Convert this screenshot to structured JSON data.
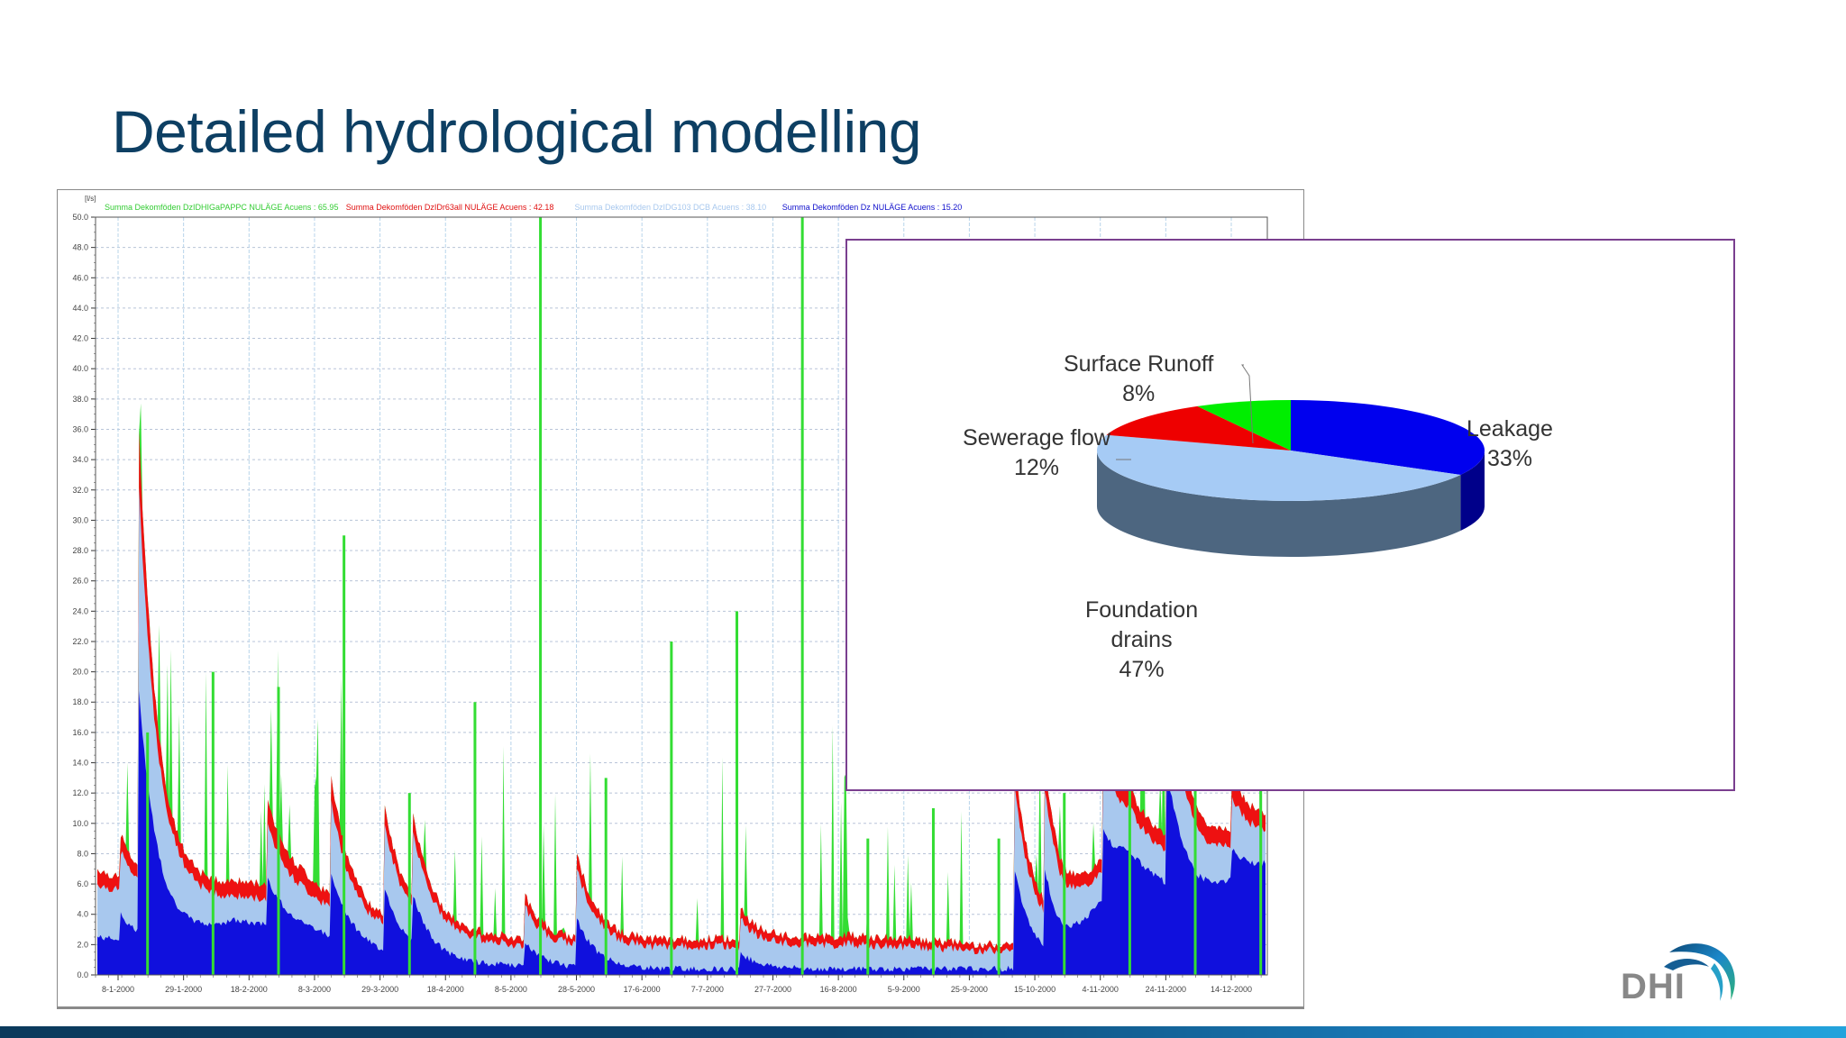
{
  "slide": {
    "title": "Detailed hydrological modelling",
    "logo_text": "DHI",
    "colors": {
      "title": "#0d3f63",
      "bottom_bar_start": "#0b3a5c",
      "bottom_bar_end": "#23a3dc",
      "pie_border": "#7a3f8f"
    }
  },
  "timeseries": {
    "unit_label": "[l/s]",
    "legend": [
      {
        "text": "Summa Dekomföden DzIDHIGaPAPPC NULÄGE   Acuens : 65.95",
        "color": "#33cc33"
      },
      {
        "text": "Summa Dekomföden DzIDr63all NULÄGE   Acuens : 42.18",
        "color": "#e01010"
      },
      {
        "text": "Summa Dekomföden DzIDG103 DCB   Acuens : 38.10",
        "color": "#a8c8ee"
      },
      {
        "text": "Summa Dekomföden Dz NULÄGE   Acuens : 15.20",
        "color": "#1010cc"
      }
    ],
    "y_ticks": [
      "0.0",
      "2.0",
      "4.0",
      "6.0",
      "8.0",
      "10.0",
      "12.0",
      "14.0",
      "16.0",
      "18.0",
      "20.0",
      "22.0",
      "24.0",
      "26.0",
      "28.0",
      "30.0",
      "32.0",
      "34.0",
      "36.0",
      "38.0",
      "40.0",
      "42.0",
      "44.0",
      "46.0",
      "48.0",
      "50.0"
    ],
    "x_ticks": [
      "8-1-2000",
      "29-1-2000",
      "18-2-2000",
      "8-3-2000",
      "29-3-2000",
      "18-4-2000",
      "8-5-2000",
      "28-5-2000",
      "17-6-2000",
      "7-7-2000",
      "27-7-2000",
      "16-8-2000",
      "5-9-2000",
      "25-9-2000",
      "15-10-2000",
      "4-11-2000",
      "24-11-2000",
      "14-12-2000"
    ]
  },
  "pie": {
    "labels": {
      "surface_name": "Surface Runoff",
      "surface_pct": "8%",
      "sewerage_name": "Sewerage flow",
      "sewerage_pct": "12%",
      "leakage_name": "Leakage",
      "leakage_pct": "33%",
      "foundation_name_1": "Foundation",
      "foundation_name_2": "drains",
      "foundation_pct": "47%"
    }
  },
  "chart_data": [
    {
      "type": "area",
      "title": "",
      "xlabel": "",
      "ylabel": "[l/s]",
      "ylim": [
        0,
        50
      ],
      "grid": true,
      "legend_position": "top",
      "x": [
        "8-1-2000",
        "29-1-2000",
        "18-2-2000",
        "8-3-2000",
        "29-3-2000",
        "18-4-2000",
        "8-5-2000",
        "28-5-2000",
        "17-6-2000",
        "7-7-2000",
        "27-7-2000",
        "16-8-2000",
        "5-9-2000",
        "25-9-2000",
        "15-10-2000",
        "4-11-2000",
        "24-11-2000",
        "14-12-2000"
      ],
      "series": [
        {
          "name": "Summa Dekomföden DzIDHIGaPAPPC NULÄGE (Acuens 65.95)",
          "color": "#33cc33",
          "values": [
            16,
            20,
            19,
            29,
            12,
            18,
            50,
            13,
            22,
            24,
            50,
            9,
            11,
            9,
            12,
            15,
            15,
            15
          ]
        },
        {
          "name": "Summa Dekomföden DzIDr63all NULÄGE (Acuens 42.18)",
          "color": "#e01010",
          "values": [
            7,
            5,
            6,
            6,
            3.5,
            2.8,
            2.5,
            2.2,
            2.3,
            2.4,
            2.4,
            2.6,
            2.3,
            2.0,
            2.3,
            10,
            8,
            10
          ]
        },
        {
          "name": "Summa Dekomföden DzIDG103 DCB (Acuens 38.10)",
          "color": "#a8c8ee",
          "values": [
            6,
            4.5,
            5,
            5,
            3,
            2.4,
            2.0,
            1.8,
            1.8,
            1.9,
            1.9,
            2.0,
            1.8,
            1.6,
            1.8,
            9,
            7,
            9
          ]
        },
        {
          "name": "Summa Dekomföden Dz NULÄGE (Acuens 15.20)",
          "color": "#1010cc",
          "values": [
            2.5,
            2.0,
            3.5,
            3,
            1.5,
            0.8,
            0.6,
            0.4,
            0.4,
            0.4,
            0.4,
            0.4,
            0.4,
            0.4,
            0.5,
            7,
            5,
            7
          ]
        }
      ]
    },
    {
      "type": "pie",
      "title": "",
      "categories": [
        "Leakage",
        "Foundation drains",
        "Sewerage flow",
        "Surface Runoff"
      ],
      "values": [
        33,
        47,
        12,
        8
      ],
      "colors": [
        "#0000ee",
        "#a6cbf5",
        "#ee0000",
        "#00ee00"
      ]
    }
  ]
}
